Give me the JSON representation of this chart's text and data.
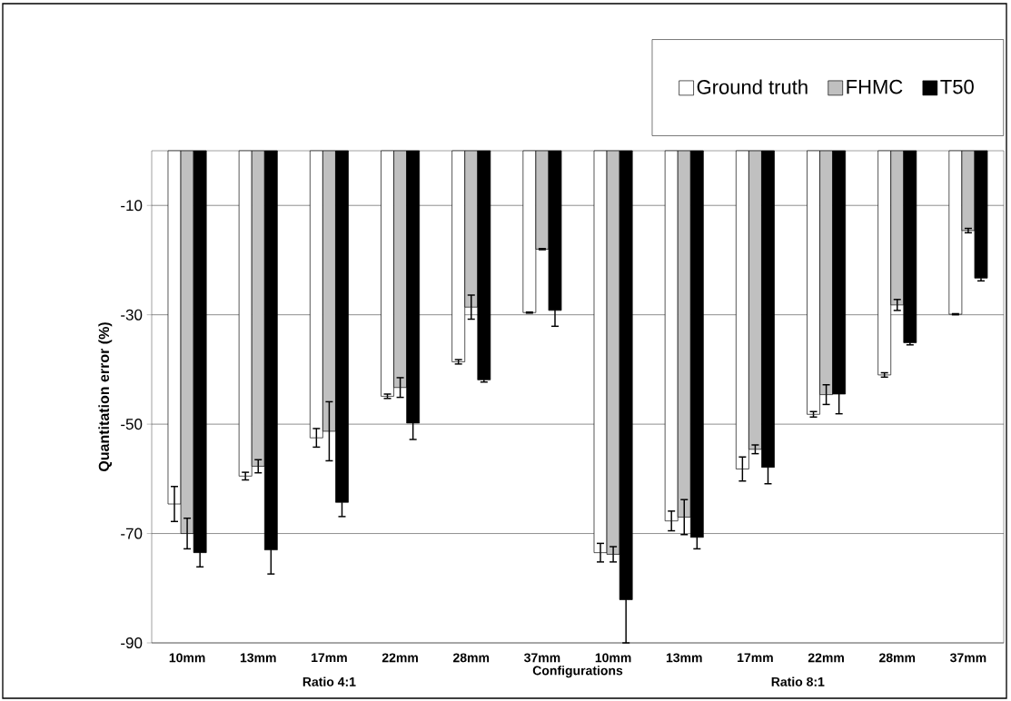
{
  "chart_data": {
    "type": "bar",
    "categories": [
      "10mm",
      "13mm",
      "17mm",
      "22mm",
      "28mm",
      "37mm",
      "10mm",
      "13mm",
      "17mm",
      "22mm",
      "28mm",
      "37mm"
    ],
    "xlabel": "Configurations",
    "ylabel": "Quantitation error (%)",
    "annotations": [
      "Ratio 4:1",
      "Ratio 8:1"
    ],
    "ylim": [
      -90,
      0
    ],
    "yticks": [
      -10,
      -30,
      -50,
      -70,
      -90
    ],
    "grid": "y",
    "legend": "top right",
    "series": [
      {
        "name": "Ground truth",
        "color": "#ffffff",
        "values": [
          -64.6,
          -59.5,
          -52.5,
          -44.9,
          -38.6,
          -29.6,
          -73.5,
          -67.7,
          -58.2,
          -48.2,
          -41.0,
          -29.9
        ],
        "errors": [
          3.2,
          0.7,
          1.7,
          0.4,
          0.4,
          0.1,
          1.7,
          1.8,
          2.2,
          0.5,
          0.4,
          0.1
        ]
      },
      {
        "name": "FHMC",
        "color": "#c0c0c0",
        "values": [
          -70.0,
          -57.7,
          -51.3,
          -43.3,
          -28.6,
          -18.0,
          -73.8,
          -67.0,
          -54.6,
          -44.6,
          -28.2,
          -14.6
        ],
        "errors": [
          2.8,
          1.2,
          5.4,
          1.8,
          2.2,
          0.1,
          1.4,
          3.2,
          0.8,
          1.8,
          1.0,
          0.4
        ]
      },
      {
        "name": "T50",
        "color": "#000000",
        "values": [
          -73.5,
          -73.0,
          -64.3,
          -49.8,
          -41.9,
          -29.2,
          -82.1,
          -70.7,
          -57.9,
          -44.5,
          -35.1,
          -23.3
        ],
        "errors": [
          2.6,
          4.4,
          2.6,
          3.0,
          0.4,
          2.9,
          7.9,
          2.1,
          3.0,
          3.6,
          0.4,
          0.5
        ]
      }
    ]
  }
}
